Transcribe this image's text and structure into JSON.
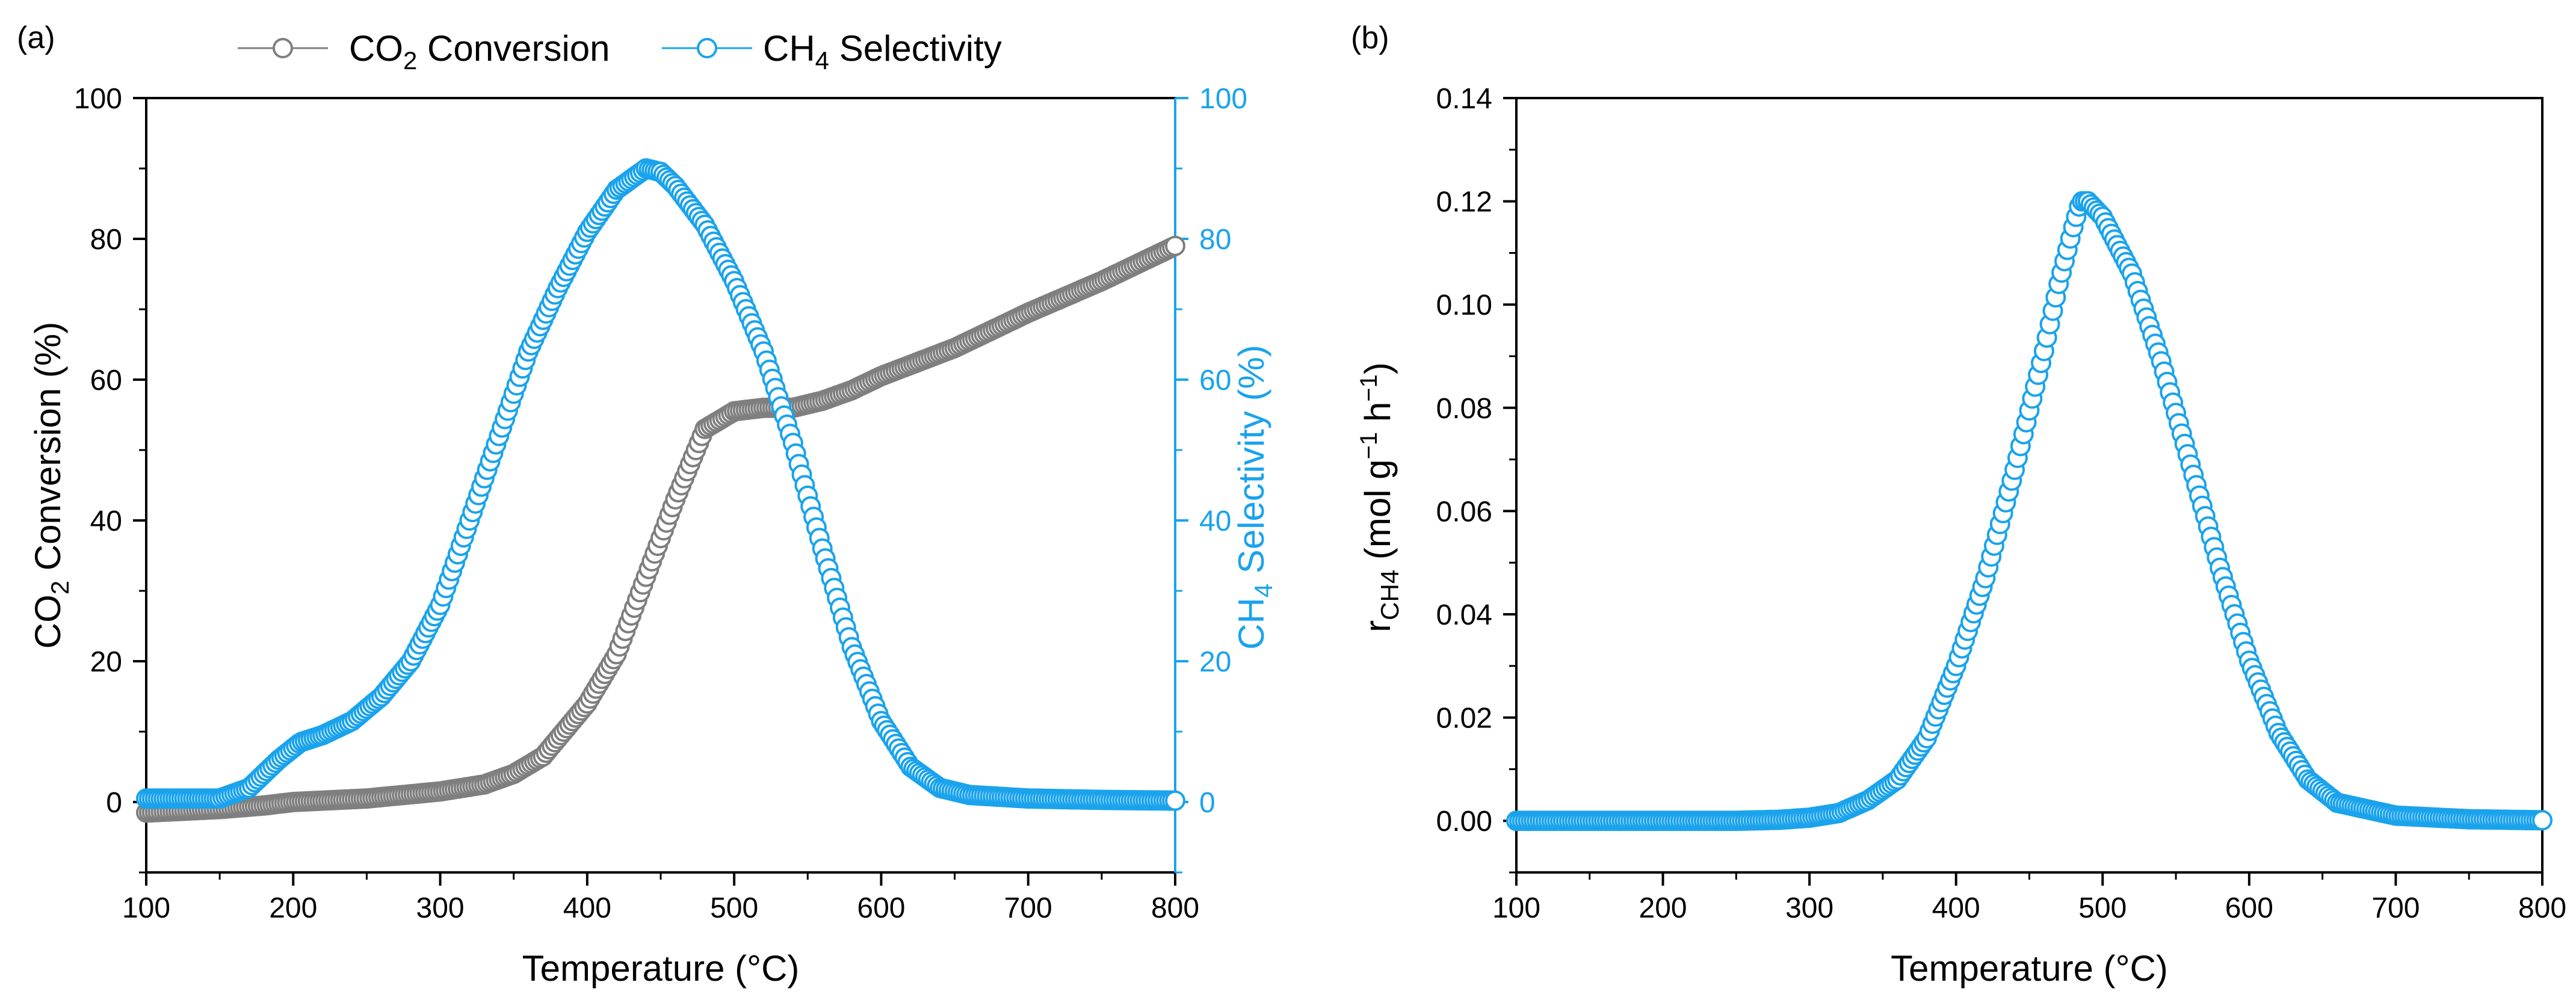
{
  "chart_data": [
    {
      "panel_label": "(a)",
      "type": "scatter",
      "xlabel": "Temperature (°C)",
      "xlim": [
        100,
        800
      ],
      "x_ticks": [
        100,
        200,
        300,
        400,
        500,
        600,
        700,
        800
      ],
      "ylabel_left": {
        "main": "CO",
        "sub": "2",
        "rest": " Conversion (%)"
      },
      "ylabel_right": {
        "main": "CH",
        "sub": "4",
        "rest": " Selectivity (%)"
      },
      "ylim_left": [
        -10,
        100
      ],
      "ylim_right": [
        -10,
        100
      ],
      "y_ticks_left": [
        0,
        20,
        40,
        60,
        80,
        100
      ],
      "y_ticks_right": [
        0,
        20,
        40,
        60,
        80,
        100
      ],
      "legend": [
        {
          "main": "CO",
          "sub": "2",
          "rest": " Conversion",
          "color": "#7f7f7f"
        },
        {
          "main": "CH",
          "sub": "4",
          "rest": " Selectivity",
          "color": "#1aa3ec"
        }
      ],
      "series": [
        {
          "name": "CO2 Conversion",
          "axis": "left",
          "color": "#7f7f7f",
          "x": [
            100,
            150,
            180,
            200,
            250,
            300,
            330,
            350,
            370,
            400,
            420,
            440,
            460,
            480,
            500,
            520,
            540,
            560,
            580,
            600,
            650,
            700,
            750,
            800
          ],
          "y": [
            -1.5,
            -1,
            -0.5,
            0,
            0.5,
            1.5,
            2.5,
            4,
            6.5,
            14,
            21,
            32,
            43,
            53,
            55.5,
            56,
            56,
            57,
            58.5,
            60.5,
            64.5,
            69.5,
            74,
            79
          ]
        },
        {
          "name": "CH4 Selectivity",
          "axis": "right",
          "color": "#1aa3ec",
          "x": [
            100,
            150,
            170,
            190,
            205,
            220,
            240,
            260,
            280,
            300,
            320,
            340,
            360,
            380,
            400,
            420,
            440,
            450,
            460,
            480,
            500,
            520,
            540,
            560,
            580,
            600,
            620,
            640,
            660,
            700,
            750,
            800
          ],
          "y": [
            0.5,
            0.5,
            2,
            6,
            8.5,
            9.5,
            11.5,
            15,
            20,
            28,
            40,
            52,
            64,
            73,
            81,
            87,
            90,
            89.5,
            87.5,
            82,
            74,
            64,
            51,
            36,
            22,
            11.5,
            5,
            2,
            1,
            0.5,
            0.3,
            0.2
          ]
        }
      ]
    },
    {
      "panel_label": "(b)",
      "type": "scatter",
      "xlabel": "Temperature (°C)",
      "xlim": [
        100,
        800
      ],
      "x_ticks": [
        100,
        200,
        300,
        400,
        500,
        600,
        700,
        800
      ],
      "ylabel": {
        "main": "r",
        "sub": "CH4",
        "rest": " (mol g",
        "sup1": "−1",
        "mid": " h",
        "sup2": "−1",
        "end": ")"
      },
      "ylim": [
        -0.01,
        0.14
      ],
      "y_ticks": [
        "0.00",
        "0.02",
        "0.04",
        "0.06",
        "0.08",
        "0.10",
        "0.12",
        "0.14"
      ],
      "series": [
        {
          "name": "rCH4",
          "color": "#1aa3ec",
          "x": [
            100,
            200,
            250,
            280,
            300,
            320,
            340,
            360,
            380,
            400,
            420,
            440,
            460,
            470,
            480,
            485,
            490,
            500,
            520,
            540,
            560,
            580,
            600,
            620,
            640,
            660,
            700,
            750,
            800
          ],
          "y": [
            0,
            0,
            0,
            0.0002,
            0.0006,
            0.0015,
            0.004,
            0.008,
            0.016,
            0.03,
            0.047,
            0.068,
            0.091,
            0.104,
            0.115,
            0.12,
            0.12,
            0.117,
            0.106,
            0.089,
            0.069,
            0.049,
            0.031,
            0.017,
            0.008,
            0.0035,
            0.001,
            0.0003,
            0.0001
          ]
        }
      ]
    }
  ]
}
